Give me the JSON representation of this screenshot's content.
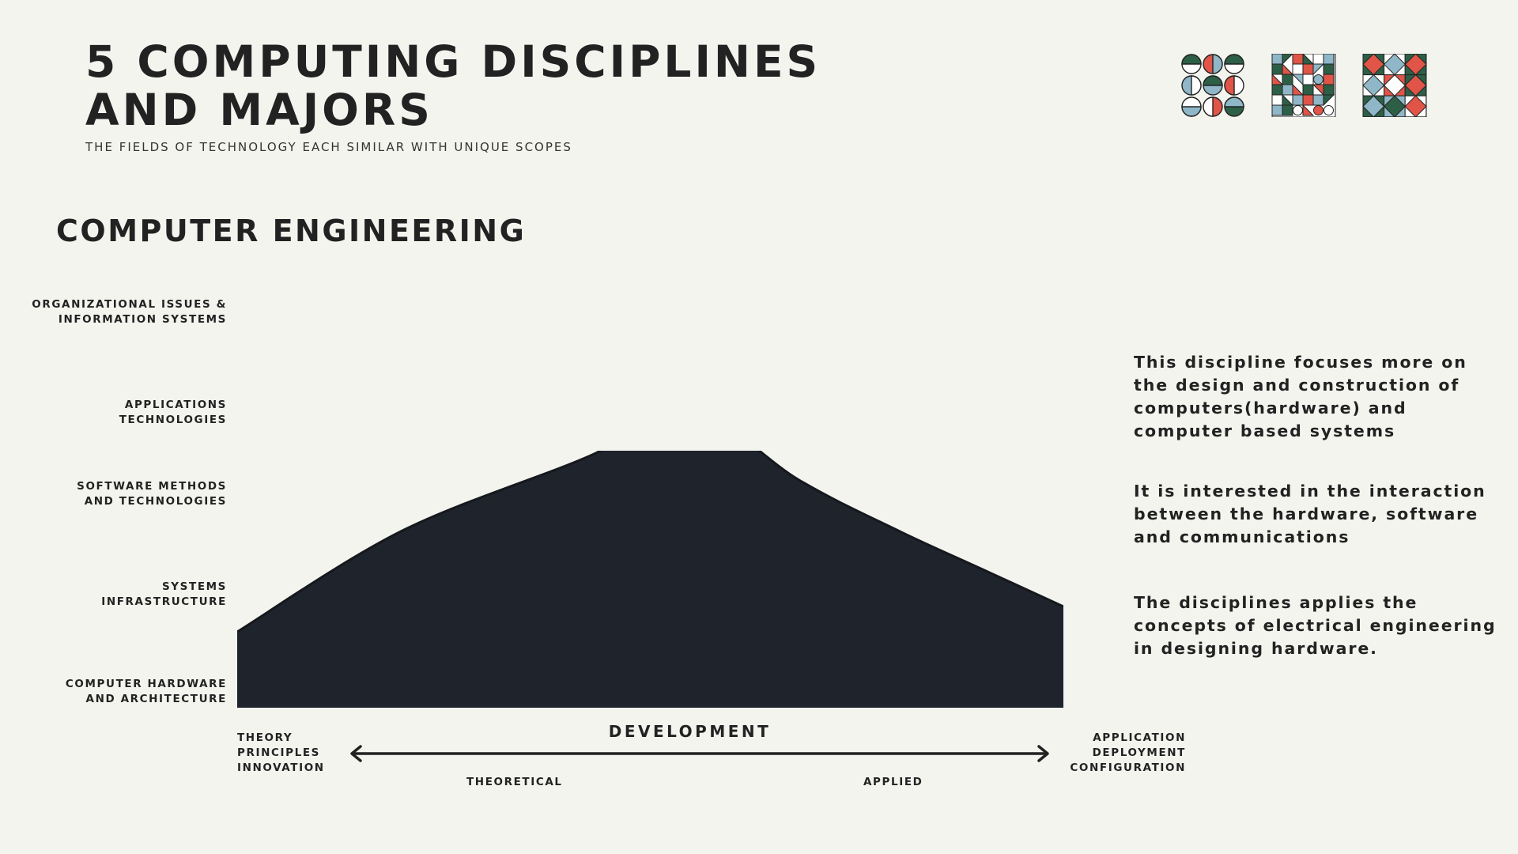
{
  "header": {
    "title": "5 COMPUTING DISCIPLINES AND MAJORS",
    "subtitle": "THE FIELDS OF TECHNOLOGY EACH SIMILAR WITH UNIQUE SCOPES"
  },
  "section": {
    "title": "COMPUTER ENGINEERING"
  },
  "colors": {
    "background": "#f4f4ef",
    "text": "#222222",
    "mountain": "#1f232b",
    "pattern_green": "#2d5f47",
    "pattern_blue": "#8fb7c7",
    "pattern_red": "#e05548",
    "pattern_white": "#ffffff"
  },
  "icons": [
    "geometric-pattern-icon-1",
    "geometric-pattern-icon-2",
    "geometric-pattern-icon-3"
  ],
  "chart_data": {
    "type": "area",
    "y_categories": [
      "COMPUTER HARDWARE AND ARCHITECTURE",
      "SYSTEMS INFRASTRUCTURE",
      "SOFTWARE METHODS AND TECHNOLOGIES",
      "APPLICATIONS TECHNOLOGIES",
      "ORGANIZATIONAL ISSUES & INFORMATION SYSTEMS"
    ],
    "x": [
      0,
      0.2,
      0.43,
      0.54,
      0.68,
      0.8,
      0.9,
      1.0
    ],
    "values": [
      1.2,
      2.0,
      2.6,
      3.0,
      2.4,
      2.0,
      1.7,
      1.4
    ],
    "y_range": [
      0.6,
      4.1
    ],
    "x_range": [
      0,
      1
    ]
  },
  "y_labels": {
    "org_line1": "ORGANIZATIONAL ISSUES &",
    "org_line2": "INFORMATION SYSTEMS",
    "app_line1": "APPLICATIONS",
    "app_line2": "TECHNOLOGIES",
    "soft_line1": "SOFTWARE METHODS",
    "soft_line2": "AND TECHNOLOGIES",
    "sys_line1": "SYSTEMS",
    "sys_line2": "INFRASTRUCTURE",
    "hw_line1": "COMPUTER HARDWARE",
    "hw_line2": "AND ARCHITECTURE"
  },
  "x_axis": {
    "title": "DEVELOPMENT",
    "left_line1": "THEORY",
    "left_line2": "PRINCIPLES",
    "left_line3": "INNOVATION",
    "right_line1": "APPLICATION",
    "right_line2": "DEPLOYMENT",
    "right_line3": "CONFIGURATION",
    "theoretical": "THEORETICAL",
    "applied": "APPLIED"
  },
  "descriptions": [
    "This discipline focuses more on the design and construction of computers(hardware) and computer based systems",
    "It is interested in the interaction between the hardware, software and communications",
    "The disciplines applies the concepts of electrical engineering in designing hardware."
  ]
}
